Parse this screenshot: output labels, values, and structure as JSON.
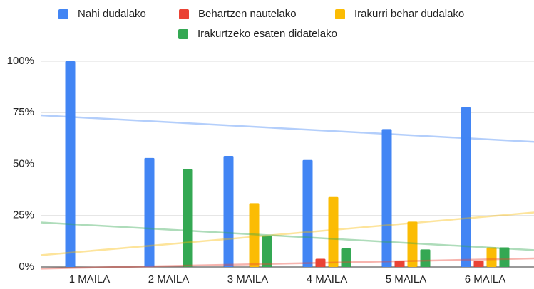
{
  "chart_data": {
    "type": "bar",
    "categories": [
      "1 MAILA",
      "2 MAILA",
      "3 MAILA",
      "4 MAILA",
      "5 MAILA",
      "6 MAILA"
    ],
    "series": [
      {
        "name": "Nahi dudalako",
        "color": "#4285f4",
        "values": [
          100,
          53,
          54,
          52,
          67,
          77.5
        ]
      },
      {
        "name": "Behartzen nautelako",
        "color": "#ea4335",
        "values": [
          0,
          0,
          0,
          4,
          3,
          3
        ]
      },
      {
        "name": "Irakurri behar dudalako",
        "color": "#fbbc04",
        "values": [
          0,
          0,
          31,
          34,
          22,
          9.5
        ]
      },
      {
        "name": "Irakurtzeko esaten didatelako",
        "color": "#34a853",
        "values": [
          0,
          47.5,
          15,
          9,
          8.5,
          9.5
        ]
      }
    ],
    "ylim": [
      0,
      100
    ],
    "yticks": [
      {
        "value": 0,
        "label": "0%"
      },
      {
        "value": 25,
        "label": "25%"
      },
      {
        "value": 50,
        "label": "50%"
      },
      {
        "value": 75,
        "label": "75%"
      },
      {
        "value": 100,
        "label": "100%"
      }
    ],
    "grid": true,
    "trendline": true,
    "legend": "top"
  }
}
